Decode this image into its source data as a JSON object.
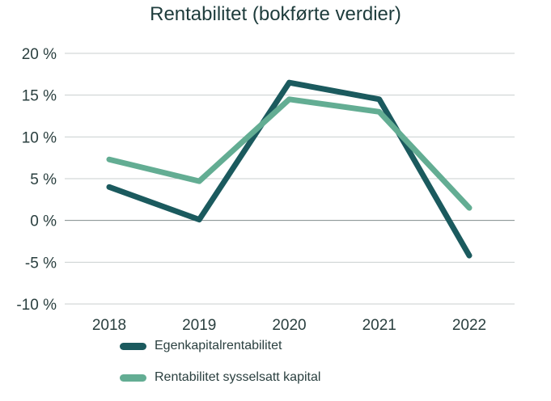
{
  "chart_data": {
    "type": "line",
    "title": "Rentabilitet (bokførte verdier)",
    "categories": [
      "2018",
      "2019",
      "2020",
      "2021",
      "2022"
    ],
    "y_tick_labels": [
      "20 %",
      "15 %",
      "10 %",
      "5 %",
      "0 %",
      "-5 %",
      "-10 %"
    ],
    "y_ticks": [
      20,
      15,
      10,
      5,
      0,
      -5,
      -10
    ],
    "ylim": [
      -10,
      20
    ],
    "grid": true,
    "legend_position": "bottom-left",
    "series": [
      {
        "name": "Egenkapitalrentabilitet",
        "values": [
          4.0,
          0.1,
          16.5,
          14.5,
          -4.2
        ],
        "color": "#1b5a5e"
      },
      {
        "name": "Rentabilitet sysselsatt kapital",
        "values": [
          7.3,
          4.7,
          14.5,
          13.0,
          1.5
        ],
        "color": "#63ad93"
      }
    ]
  }
}
